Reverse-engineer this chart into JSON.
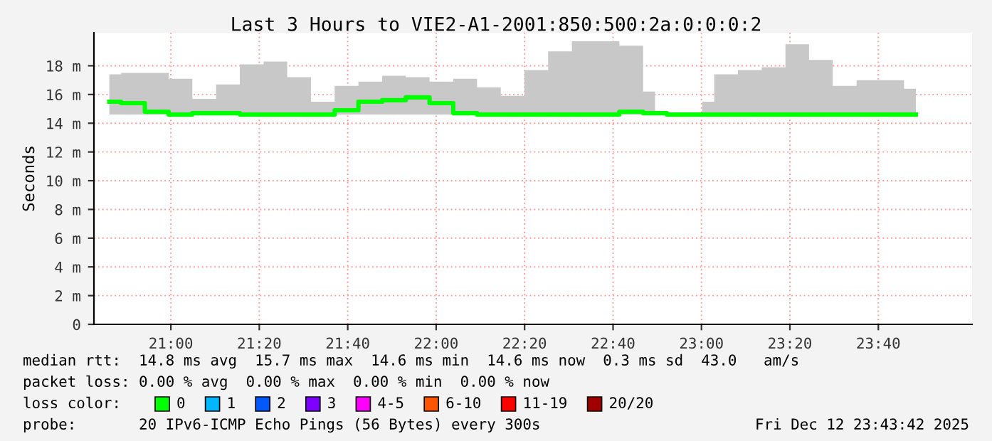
{
  "chart_data": {
    "type": "step",
    "title": "Last 3 Hours to VIE2-A1-2001:850:500:2a:0:0:0:2",
    "ylabel": "Seconds",
    "x": [
      20.768,
      20.857,
      20.947,
      21.036,
      21.126,
      21.215,
      21.305,
      21.394,
      21.483,
      21.573,
      21.662,
      21.752,
      21.841,
      21.93,
      22.02,
      22.109,
      22.199,
      22.288,
      22.377,
      22.467,
      22.556,
      22.646,
      22.735,
      22.825,
      22.914,
      23.003,
      23.093,
      23.182,
      23.272,
      23.361,
      23.45,
      23.54,
      23.629,
      23.719,
      23.808
    ],
    "series": [
      {
        "color": "#00ff00",
        "values": [
          15.5,
          15.4,
          14.8,
          14.6,
          14.7,
          14.7,
          14.6,
          14.6,
          14.6,
          14.6,
          14.9,
          15.5,
          15.6,
          15.8,
          15.4,
          14.7,
          14.6,
          14.6,
          14.6,
          14.6,
          14.6,
          14.6,
          14.8,
          14.7,
          14.6,
          14.6,
          14.6,
          14.6,
          14.6,
          14.6,
          14.6,
          14.6,
          14.6,
          14.6,
          14.6
        ],
        "lower": [
          14.6,
          14.6,
          14.6,
          14.6,
          14.6,
          14.6,
          14.6,
          14.6,
          14.6,
          14.6,
          14.6,
          14.6,
          14.6,
          14.6,
          14.6,
          14.6,
          14.6,
          14.6,
          14.6,
          14.6,
          14.6,
          14.6,
          14.6,
          14.6,
          null,
          14.6,
          14.6,
          14.6,
          14.6,
          14.6,
          14.6,
          14.6,
          14.6,
          14.6,
          14.6
        ],
        "upper": [
          17.4,
          17.5,
          17.5,
          17.1,
          15.7,
          16.7,
          18.1,
          18.3,
          17.2,
          15.5,
          16.6,
          16.9,
          17.3,
          17.2,
          16.9,
          17.1,
          16.5,
          15.9,
          17.7,
          19.0,
          19.7,
          19.7,
          19.4,
          16.2,
          null,
          15.5,
          17.4,
          17.7,
          17.9,
          19.5,
          18.4,
          16.6,
          17.0,
          17.0,
          16.4
        ]
      }
    ],
    "xlim": [
      20.71,
      24.02
    ],
    "ylim": [
      0,
      20.3
    ],
    "xticks": [
      {
        "value": 21,
        "label": "21:00"
      },
      {
        "value": 21.3333,
        "label": "21:20"
      },
      {
        "value": 21.6667,
        "label": "21:40"
      },
      {
        "value": 22,
        "label": "22:00"
      },
      {
        "value": 22.3333,
        "label": "22:20"
      },
      {
        "value": 22.6667,
        "label": "22:40"
      },
      {
        "value": 23,
        "label": "23:00"
      },
      {
        "value": 23.3333,
        "label": "23:20"
      },
      {
        "value": 23.6667,
        "label": "23:40"
      }
    ],
    "yticks": [
      0,
      {
        "value": 2,
        "label": "2 m"
      },
      {
        "value": 4,
        "label": "4 m"
      },
      {
        "value": 6,
        "label": "6 m"
      },
      {
        "value": 8,
        "label": "8 m"
      },
      {
        "value": 10,
        "label": "10 m"
      },
      {
        "value": 12,
        "label": "12 m"
      },
      {
        "value": 14,
        "label": "14 m"
      },
      {
        "value": 16,
        "label": "16 m"
      },
      {
        "value": 18,
        "label": "18 m"
      }
    ],
    "grid": true,
    "annotations": [
      "median rtt:  14.8 ms avg  15.7 ms max  14.6 ms min  14.6 ms now  0.3 ms sd  43.0   am/s",
      "packet loss: 0.00 % avg  0.00 % max  0.00 % min  0.00 % now",
      "loss color:",
      "0",
      "1",
      "2",
      "3",
      "4-5",
      "6-10",
      "11-19",
      "20/20",
      "probe:       20 IPv6-ICMP Echo Pings (56 Bytes) every 300s",
      "Fri Dec 12 23:43:42 2025"
    ]
  }
}
